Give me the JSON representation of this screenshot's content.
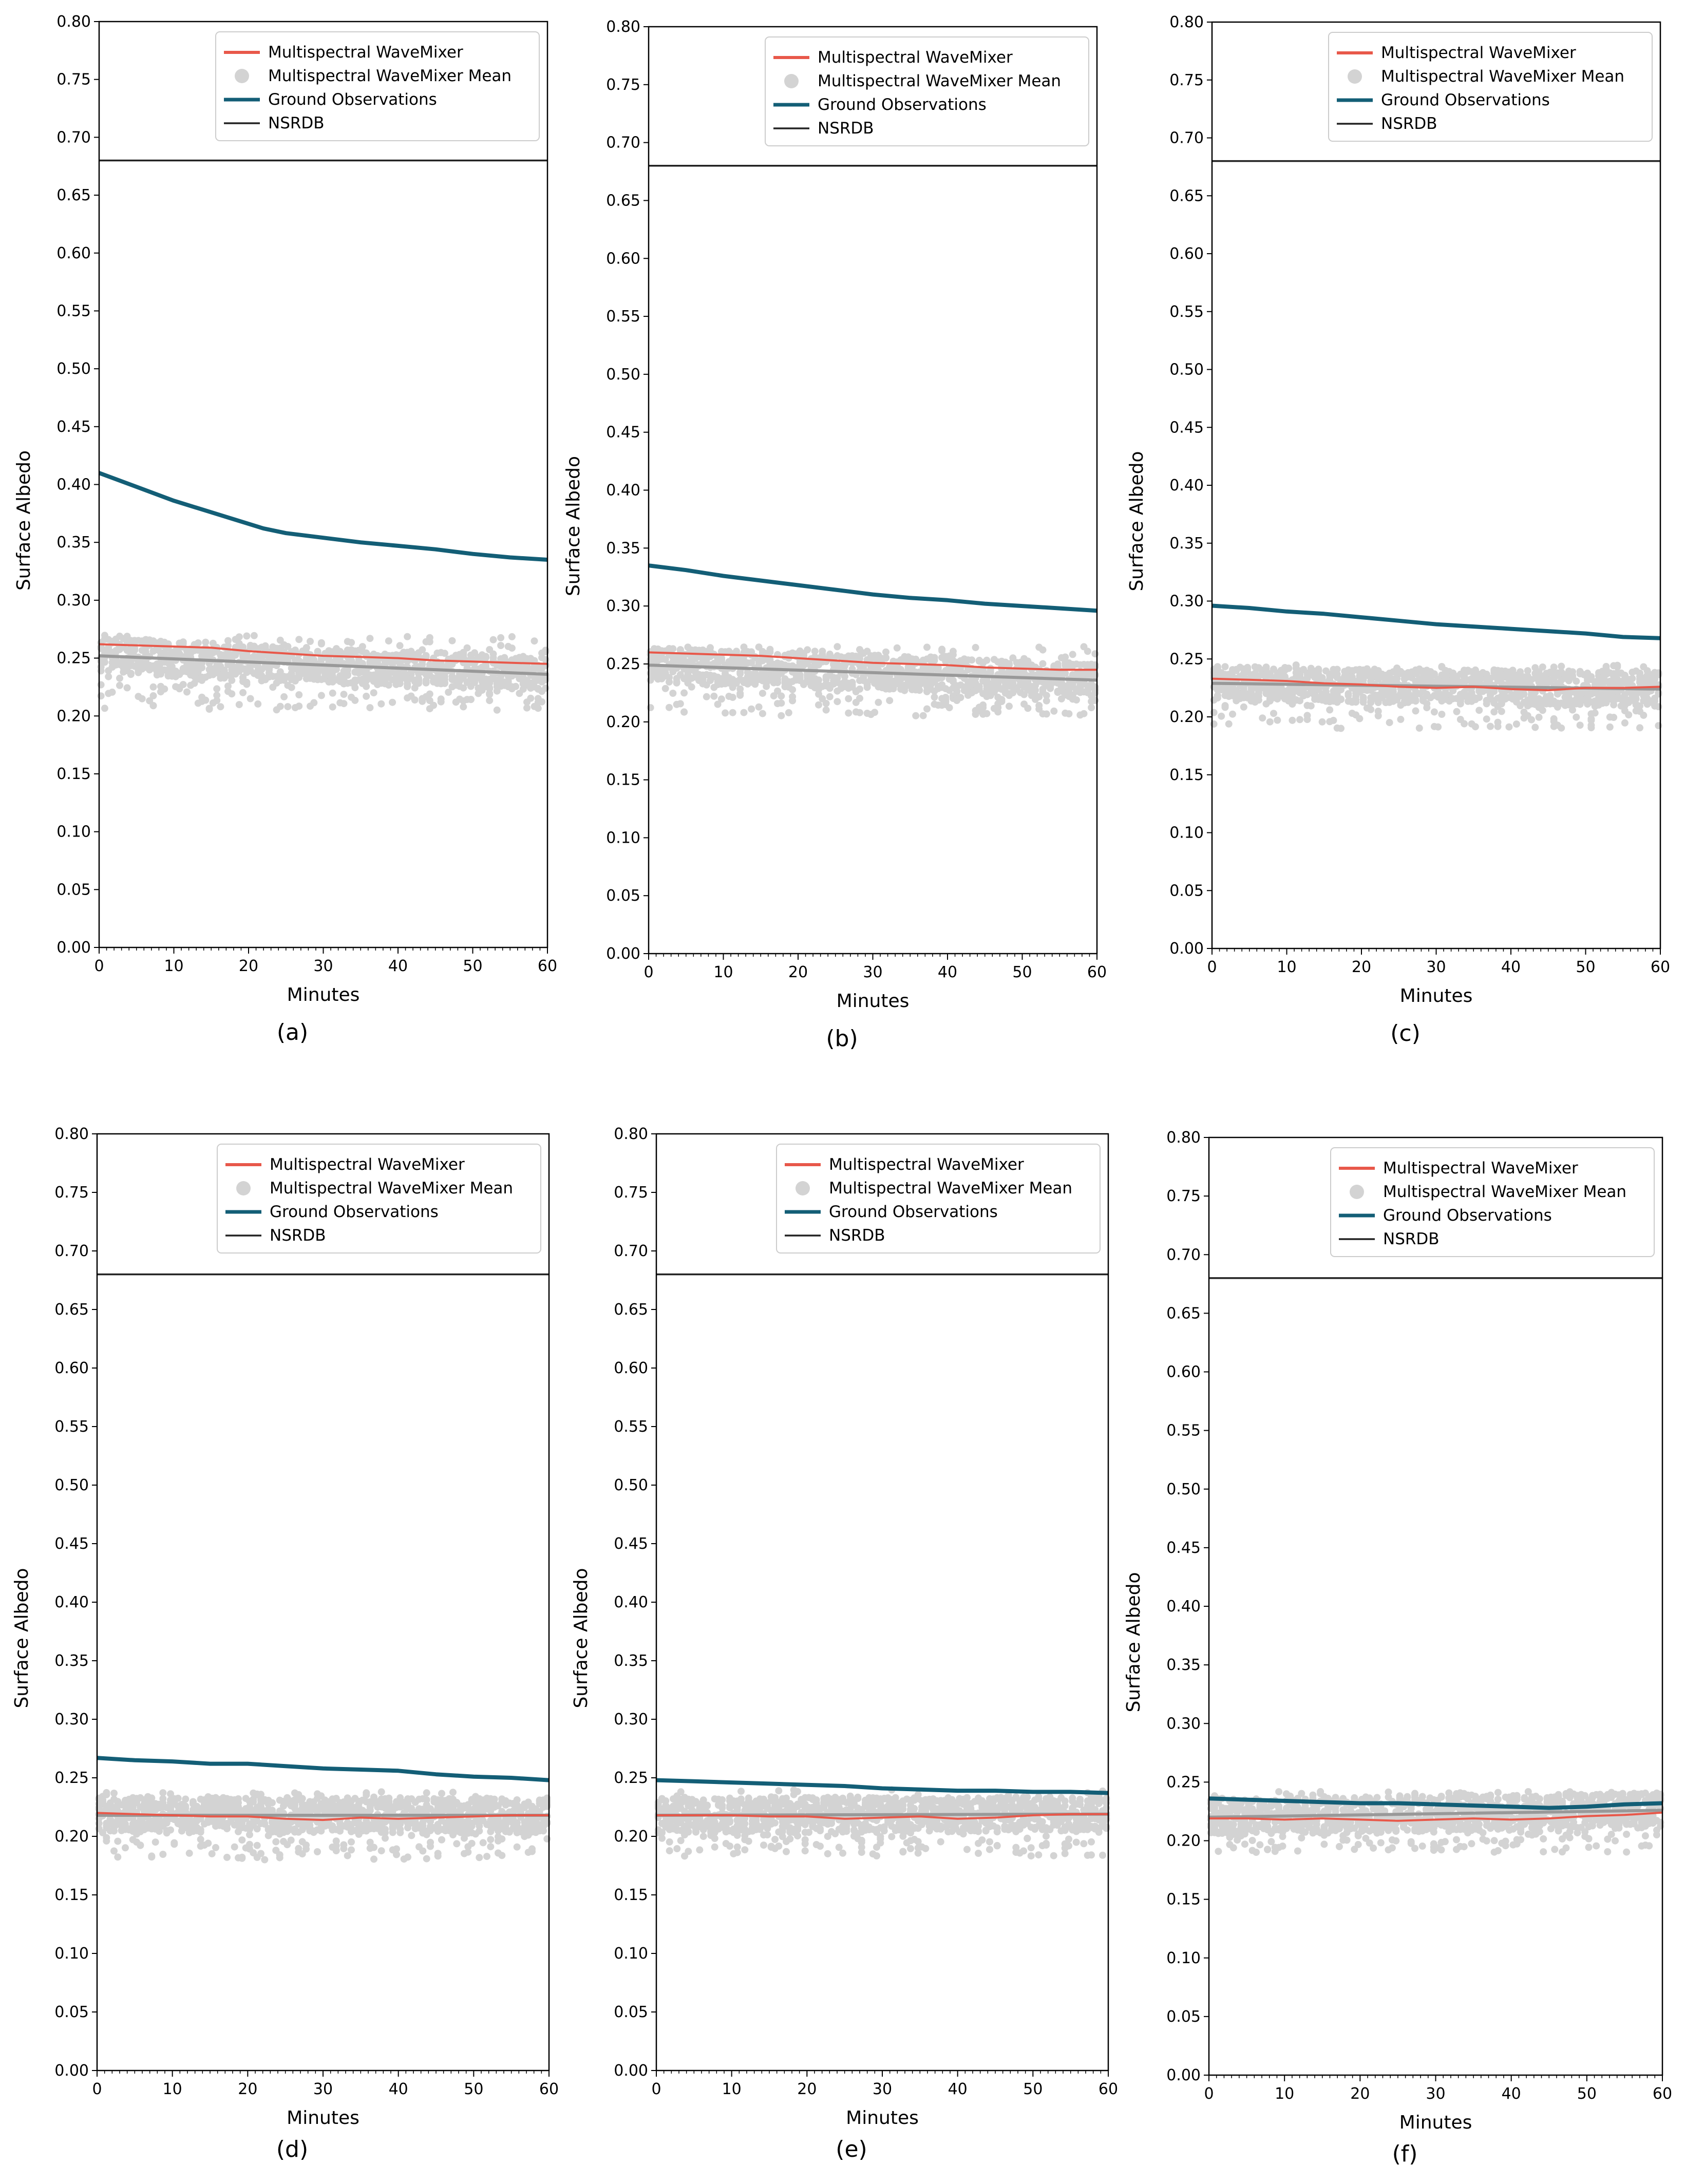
{
  "chart_data": [
    {
      "panel": "(a)",
      "type": "line",
      "xlabel": "Minutes",
      "ylabel": "Surface Albedo",
      "xlim": [
        0,
        60
      ],
      "ylim": [
        0,
        0.8
      ],
      "xticks": [
        "0",
        "10",
        "20",
        "30",
        "40",
        "50",
        "60"
      ],
      "yticks": [
        "0.00",
        "0.05",
        "0.10",
        "0.15",
        "0.20",
        "0.25",
        "0.30",
        "0.35",
        "0.40",
        "0.45",
        "0.50",
        "0.55",
        "0.60",
        "0.65",
        "0.70",
        "0.75",
        "0.80"
      ],
      "legend": [
        "Multispectral WaveMixer",
        "Multispectral WaveMixer Mean",
        "Ground Observations",
        "NSRDB"
      ],
      "legend_position": "top-right",
      "series": [
        {
          "name": "Multispectral WaveMixer",
          "x": [
            0,
            5,
            10,
            15,
            20,
            25,
            30,
            35,
            40,
            45,
            50,
            55,
            60
          ],
          "values": [
            0.262,
            0.261,
            0.26,
            0.259,
            0.256,
            0.254,
            0.252,
            0.251,
            0.25,
            0.248,
            0.247,
            0.246,
            0.245
          ]
        },
        {
          "name": "Multispectral WaveMixer Mean",
          "x": [
            0,
            60
          ],
          "values": [
            0.252,
            0.236
          ],
          "spread": [
            0.205,
            0.27
          ]
        },
        {
          "name": "Ground Observations",
          "x": [
            0,
            5,
            10,
            15,
            20,
            22,
            25,
            30,
            35,
            40,
            45,
            50,
            55,
            60
          ],
          "values": [
            0.41,
            0.398,
            0.386,
            0.376,
            0.366,
            0.362,
            0.358,
            0.354,
            0.35,
            0.347,
            0.344,
            0.34,
            0.337,
            0.335
          ]
        },
        {
          "name": "NSRDB",
          "x": [
            0,
            60
          ],
          "values": [
            0.68,
            0.68
          ]
        }
      ]
    },
    {
      "panel": "(b)",
      "type": "line",
      "xlabel": "Minutes",
      "ylabel": "Surface Albedo",
      "xlim": [
        0,
        60
      ],
      "ylim": [
        0,
        0.8
      ],
      "xticks": [
        "0",
        "10",
        "20",
        "30",
        "40",
        "50",
        "60"
      ],
      "yticks": [
        "0.00",
        "0.05",
        "0.10",
        "0.15",
        "0.20",
        "0.25",
        "0.30",
        "0.35",
        "0.40",
        "0.45",
        "0.50",
        "0.55",
        "0.60",
        "0.65",
        "0.70",
        "0.75",
        "0.80"
      ],
      "legend": [
        "Multispectral WaveMixer",
        "Multispectral WaveMixer Mean",
        "Ground Observations",
        "NSRDB"
      ],
      "legend_position": "top-right",
      "series": [
        {
          "name": "Multispectral WaveMixer",
          "x": [
            0,
            5,
            10,
            15,
            20,
            25,
            30,
            35,
            40,
            45,
            50,
            55,
            60
          ],
          "values": [
            0.26,
            0.259,
            0.258,
            0.257,
            0.255,
            0.253,
            0.251,
            0.25,
            0.249,
            0.247,
            0.246,
            0.245,
            0.245
          ]
        },
        {
          "name": "Multispectral WaveMixer Mean",
          "x": [
            0,
            60
          ],
          "values": [
            0.249,
            0.236
          ],
          "spread": [
            0.205,
            0.265
          ]
        },
        {
          "name": "Ground Observations",
          "x": [
            0,
            5,
            10,
            15,
            20,
            25,
            30,
            35,
            40,
            45,
            50,
            55,
            60
          ],
          "values": [
            0.335,
            0.331,
            0.326,
            0.322,
            0.318,
            0.314,
            0.31,
            0.307,
            0.305,
            0.302,
            0.3,
            0.298,
            0.296
          ]
        },
        {
          "name": "NSRDB",
          "x": [
            0,
            60
          ],
          "values": [
            0.68,
            0.68
          ]
        }
      ]
    },
    {
      "panel": "(c)",
      "type": "line",
      "xlabel": "Minutes",
      "ylabel": "Surface Albedo",
      "xlim": [
        0,
        60
      ],
      "ylim": [
        0,
        0.8
      ],
      "xticks": [
        "0",
        "10",
        "20",
        "30",
        "40",
        "50",
        "60"
      ],
      "yticks": [
        "0.00",
        "0.05",
        "0.10",
        "0.15",
        "0.20",
        "0.25",
        "0.30",
        "0.35",
        "0.40",
        "0.45",
        "0.50",
        "0.55",
        "0.60",
        "0.65",
        "0.70",
        "0.75",
        "0.80"
      ],
      "legend": [
        "Multispectral WaveMixer",
        "Multispectral WaveMixer Mean",
        "Ground Observations",
        "NSRDB"
      ],
      "legend_position": "top-right",
      "series": [
        {
          "name": "Multispectral WaveMixer",
          "x": [
            0,
            5,
            10,
            15,
            20,
            25,
            30,
            35,
            40,
            45,
            50,
            55,
            60
          ],
          "values": [
            0.233,
            0.232,
            0.231,
            0.229,
            0.228,
            0.226,
            0.225,
            0.226,
            0.224,
            0.223,
            0.225,
            0.225,
            0.226
          ]
        },
        {
          "name": "Multispectral WaveMixer Mean",
          "x": [
            0,
            60
          ],
          "values": [
            0.229,
            0.224
          ],
          "spread": [
            0.19,
            0.245
          ]
        },
        {
          "name": "Ground Observations",
          "x": [
            0,
            5,
            10,
            15,
            20,
            25,
            30,
            35,
            40,
            45,
            50,
            55,
            60
          ],
          "values": [
            0.296,
            0.294,
            0.291,
            0.289,
            0.286,
            0.283,
            0.28,
            0.278,
            0.276,
            0.274,
            0.272,
            0.269,
            0.268
          ]
        },
        {
          "name": "NSRDB",
          "x": [
            0,
            60
          ],
          "values": [
            0.68,
            0.68
          ]
        }
      ]
    },
    {
      "panel": "(d)",
      "type": "line",
      "xlabel": "Minutes",
      "ylabel": "Surface Albedo",
      "xlim": [
        0,
        60
      ],
      "ylim": [
        0,
        0.8
      ],
      "xticks": [
        "0",
        "10",
        "20",
        "30",
        "40",
        "50",
        "60"
      ],
      "yticks": [
        "0.00",
        "0.05",
        "0.10",
        "0.15",
        "0.20",
        "0.25",
        "0.30",
        "0.35",
        "0.40",
        "0.45",
        "0.50",
        "0.55",
        "0.60",
        "0.65",
        "0.70",
        "0.75",
        "0.80"
      ],
      "legend": [
        "Multispectral WaveMixer",
        "Multispectral WaveMixer Mean",
        "Ground Observations",
        "NSRDB"
      ],
      "legend_position": "top-right",
      "series": [
        {
          "name": "Multispectral WaveMixer",
          "x": [
            0,
            5,
            10,
            15,
            20,
            25,
            30,
            35,
            40,
            45,
            50,
            55,
            60
          ],
          "values": [
            0.22,
            0.219,
            0.218,
            0.217,
            0.217,
            0.215,
            0.214,
            0.216,
            0.215,
            0.216,
            0.217,
            0.218,
            0.218
          ]
        },
        {
          "name": "Multispectral WaveMixer Mean",
          "x": [
            0,
            60
          ],
          "values": [
            0.218,
            0.218
          ],
          "spread": [
            0.18,
            0.238
          ]
        },
        {
          "name": "Ground Observations",
          "x": [
            0,
            5,
            10,
            15,
            20,
            25,
            30,
            35,
            40,
            45,
            50,
            55,
            60
          ],
          "values": [
            0.267,
            0.265,
            0.264,
            0.262,
            0.262,
            0.26,
            0.258,
            0.257,
            0.256,
            0.253,
            0.251,
            0.25,
            0.248
          ]
        },
        {
          "name": "NSRDB",
          "x": [
            0,
            60
          ],
          "values": [
            0.68,
            0.68
          ]
        }
      ]
    },
    {
      "panel": "(e)",
      "type": "line",
      "xlabel": "Minutes",
      "ylabel": "Surface Albedo",
      "xlim": [
        0,
        60
      ],
      "ylim": [
        0,
        0.8
      ],
      "xticks": [
        "0",
        "10",
        "20",
        "30",
        "40",
        "50",
        "60"
      ],
      "yticks": [
        "0.00",
        "0.05",
        "0.10",
        "0.15",
        "0.20",
        "0.25",
        "0.30",
        "0.35",
        "0.40",
        "0.45",
        "0.50",
        "0.55",
        "0.60",
        "0.65",
        "0.70",
        "0.75",
        "0.80"
      ],
      "legend": [
        "Multispectral WaveMixer",
        "Multispectral WaveMixer Mean",
        "Ground Observations",
        "NSRDB"
      ],
      "legend_position": "top-right",
      "series": [
        {
          "name": "Multispectral WaveMixer",
          "x": [
            0,
            5,
            10,
            15,
            20,
            25,
            30,
            35,
            40,
            45,
            50,
            55,
            60
          ],
          "values": [
            0.218,
            0.218,
            0.218,
            0.217,
            0.217,
            0.215,
            0.216,
            0.217,
            0.215,
            0.216,
            0.218,
            0.219,
            0.219
          ]
        },
        {
          "name": "Multispectral WaveMixer Mean",
          "x": [
            0,
            60
          ],
          "values": [
            0.218,
            0.219
          ],
          "spread": [
            0.183,
            0.24
          ]
        },
        {
          "name": "Ground Observations",
          "x": [
            0,
            5,
            10,
            15,
            20,
            25,
            30,
            35,
            40,
            45,
            50,
            55,
            60
          ],
          "values": [
            0.248,
            0.247,
            0.246,
            0.245,
            0.244,
            0.243,
            0.241,
            0.24,
            0.239,
            0.239,
            0.238,
            0.238,
            0.237
          ]
        },
        {
          "name": "NSRDB",
          "x": [
            0,
            60
          ],
          "values": [
            0.68,
            0.68
          ]
        }
      ]
    },
    {
      "panel": "(f)",
      "type": "line",
      "xlabel": "Minutes",
      "ylabel": "Surface Albedo",
      "xlim": [
        0,
        60
      ],
      "ylim": [
        0,
        0.8
      ],
      "xticks": [
        "0",
        "10",
        "20",
        "30",
        "40",
        "50",
        "60"
      ],
      "yticks": [
        "0.00",
        "0.05",
        "0.10",
        "0.15",
        "0.20",
        "0.25",
        "0.30",
        "0.35",
        "0.40",
        "0.45",
        "0.50",
        "0.55",
        "0.60",
        "0.65",
        "0.70",
        "0.75",
        "0.80"
      ],
      "legend": [
        "Multispectral WaveMixer",
        "Multispectral WaveMixer Mean",
        "Ground Observations",
        "NSRDB"
      ],
      "legend_position": "top-right",
      "series": [
        {
          "name": "Multispectral WaveMixer",
          "x": [
            0,
            5,
            10,
            15,
            20,
            25,
            30,
            35,
            40,
            45,
            50,
            55,
            60
          ],
          "values": [
            0.219,
            0.219,
            0.218,
            0.219,
            0.218,
            0.217,
            0.218,
            0.219,
            0.218,
            0.219,
            0.221,
            0.222,
            0.224
          ]
        },
        {
          "name": "Multispectral WaveMixer Mean",
          "x": [
            0,
            60
          ],
          "values": [
            0.22,
            0.226
          ],
          "spread": [
            0.19,
            0.242
          ]
        },
        {
          "name": "Ground Observations",
          "x": [
            0,
            5,
            10,
            15,
            20,
            25,
            30,
            35,
            40,
            45,
            50,
            55,
            60
          ],
          "values": [
            0.236,
            0.235,
            0.234,
            0.233,
            0.232,
            0.232,
            0.231,
            0.23,
            0.229,
            0.228,
            0.229,
            0.231,
            0.232
          ]
        },
        {
          "name": "NSRDB",
          "x": [
            0,
            60
          ],
          "values": [
            0.68,
            0.68
          ]
        }
      ]
    }
  ],
  "colors": {
    "Multispectral WaveMixer": "#e8584a",
    "Multispectral WaveMixer Mean": "#d3d3d3",
    "mean_line": "#999999",
    "Ground Observations": "#135e76",
    "NSRDB": "#222222"
  }
}
